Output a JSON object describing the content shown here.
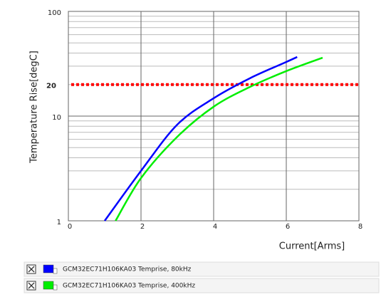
{
  "chart_data": {
    "type": "line",
    "xlabel": "Current[Arms]",
    "ylabel": "Temperature Rise[degC]",
    "xlim": [
      0,
      8
    ],
    "xticks": [
      0,
      2,
      4,
      6,
      8
    ],
    "ylim": [
      1,
      100
    ],
    "yticks": [
      1,
      10,
      100
    ],
    "yscale": "log",
    "y_minor_grid": [
      2,
      3,
      4,
      5,
      6,
      7,
      8,
      9,
      20,
      30,
      40,
      50,
      60,
      70,
      80,
      90
    ],
    "grid": true,
    "reference_line": {
      "value": 20,
      "color": "#ff0000"
    },
    "series": [
      {
        "name": "GCM32EC71H106KA03  Temprise, 80kHz",
        "color": "#0000ff",
        "x": [
          1.0,
          2,
          3,
          4,
          5,
          6,
          6.3
        ],
        "values": [
          1,
          3.0,
          8.3,
          14.8,
          23,
          32.9,
          36.7
        ]
      },
      {
        "name": "GCM32EC71H106KA03  Temprise, 400kHz",
        "color": "#00ee00",
        "x": [
          1.3,
          2,
          3,
          4,
          5,
          6,
          7
        ],
        "values": [
          1,
          2.56,
          6.35,
          12.3,
          19,
          26.9,
          36.1
        ]
      }
    ]
  }
}
